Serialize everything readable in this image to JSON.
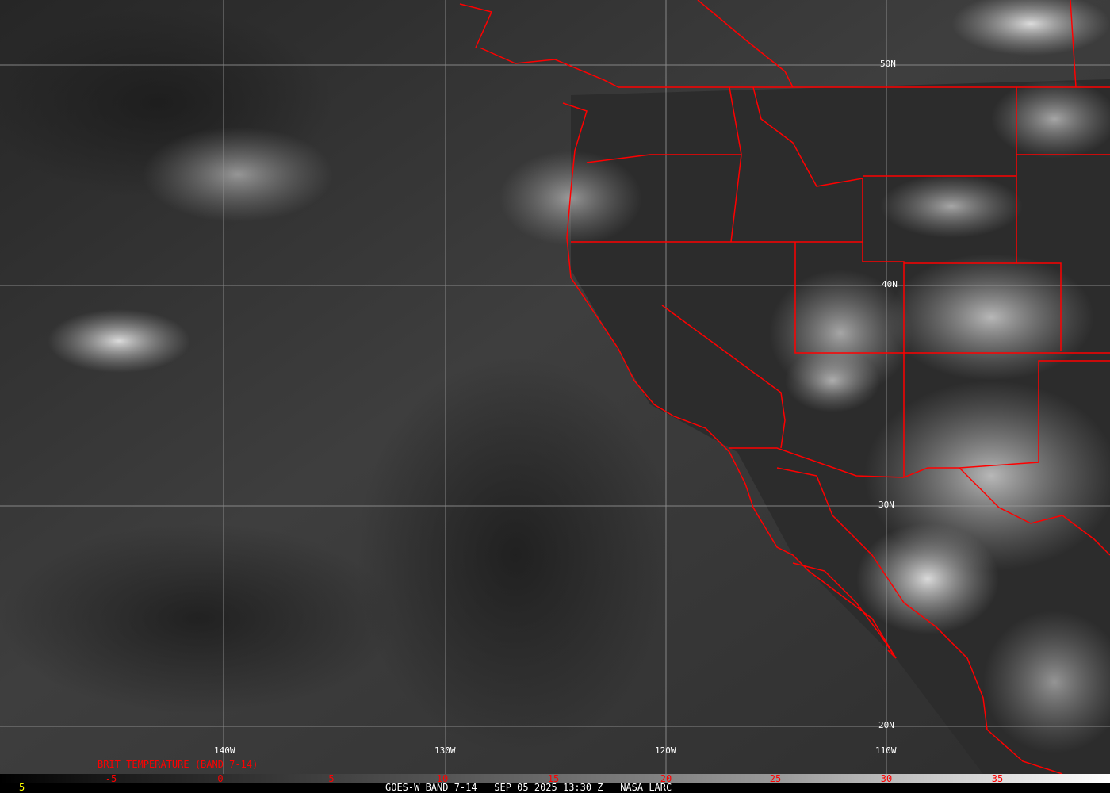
{
  "map": {
    "latitude_labels": [
      "50N",
      "40N",
      "30N",
      "20N"
    ],
    "longitude_labels": [
      "140W",
      "130W",
      "120W",
      "110W"
    ],
    "boundary_color": "#ff0000",
    "grid_color": "#9a9a9a"
  },
  "legend": {
    "title": "BRIT TEMPERATURE (BAND 7-14)",
    "ticks": [
      "-5",
      "0",
      "5",
      "10",
      "15",
      "20",
      "25",
      "30",
      "35"
    ],
    "tick_color": "#ff0000"
  },
  "footer": {
    "frame_number": "5",
    "caption": "GOES-W BAND 7-14   SEP 05 2025 13:30 Z   NASA LARC"
  }
}
